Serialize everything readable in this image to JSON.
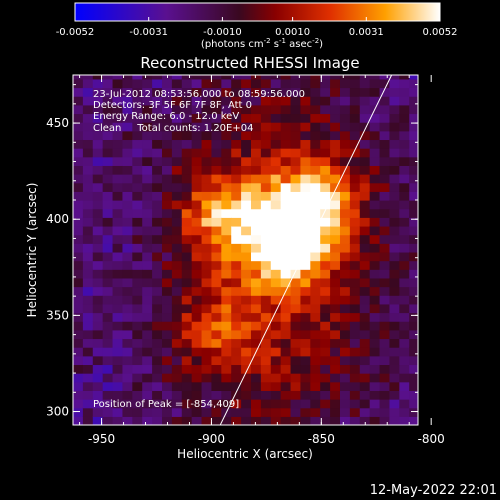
{
  "chart_data": {
    "type": "heatmap",
    "title": "Reconstructed RHESSI Image",
    "colorbar": {
      "ticks": [
        "-0.0052",
        "-0.0031",
        "-0.0010",
        "0.0010",
        "0.0031",
        "0.0052"
      ],
      "unit_prefix": "(photons cm",
      "unit_sup1": "-2",
      "unit_mid": " s",
      "unit_sup2": "-1",
      "unit_mid2": " asec",
      "unit_sup3": "-2",
      "unit_suffix": ")",
      "range": [
        -0.0052,
        0.0052
      ],
      "colormap": "blue-purple-red-yellow-white"
    },
    "info": [
      "23-Jul-2012 08:53:56.000 to 08:59:56.000",
      "Detectors: 3F 5F 6F 7F 8F, Att 0",
      "Energy Range: 6.0 - 12.0 keV",
      "Clean     Total counts: 1.20E+04"
    ],
    "peak_label": "Position of Peak = [-854,409]",
    "peak": [
      -854,
      409
    ],
    "xlabel": "Heliocentric X (arcsec)",
    "ylabel": "Heliocentric Y (arcsec)",
    "xlim": [
      -963,
      -806
    ],
    "ylim": [
      293,
      475
    ],
    "xticks": [
      "-950",
      "-900",
      "-850",
      "-800"
    ],
    "xtick_values": [
      -950,
      -900,
      -850,
      -800
    ],
    "yticks": [
      "300",
      "350",
      "400",
      "450"
    ],
    "ytick_values": [
      300,
      350,
      400,
      450
    ],
    "limb_line": [
      [
        -896,
        293
      ],
      [
        -818,
        475
      ]
    ],
    "sources": [
      {
        "x": -854,
        "y": 409,
        "peak": 0.0052
      },
      {
        "x": -866,
        "y": 385,
        "peak": 0.0046
      },
      {
        "x": -895,
        "y": 402,
        "peak": 0.0038
      },
      {
        "x": -900,
        "y": 343,
        "peak": 0.0024
      }
    ]
  },
  "footer": {
    "date": "12-May-2022 22:01"
  }
}
